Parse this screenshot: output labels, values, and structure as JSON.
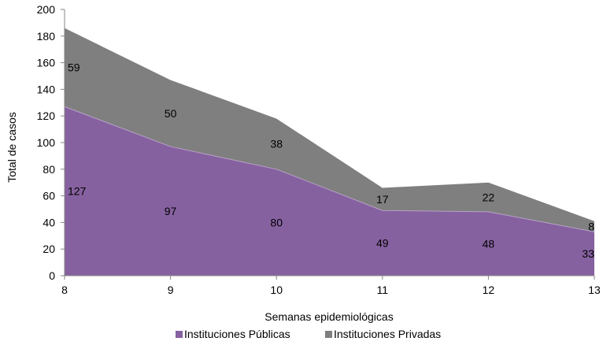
{
  "chart_data": {
    "type": "area",
    "stacked": true,
    "x": [
      8,
      9,
      10,
      11,
      12,
      13
    ],
    "series": [
      {
        "name": "Instituciones Públicas",
        "values": [
          127,
          97,
          80,
          49,
          48,
          33
        ],
        "color": "#8661a0"
      },
      {
        "name": "Instituciones Privadas",
        "values": [
          59,
          50,
          38,
          17,
          22,
          8
        ],
        "color": "#7f7f7f"
      }
    ],
    "xlabel": "Semanas epidemiológicas",
    "ylabel": "Total de casos",
    "ylim": [
      0,
      200
    ],
    "yticks": [
      0,
      20,
      40,
      60,
      80,
      100,
      120,
      140,
      160,
      180,
      200
    ],
    "grid": false,
    "legend_position": "bottom"
  }
}
